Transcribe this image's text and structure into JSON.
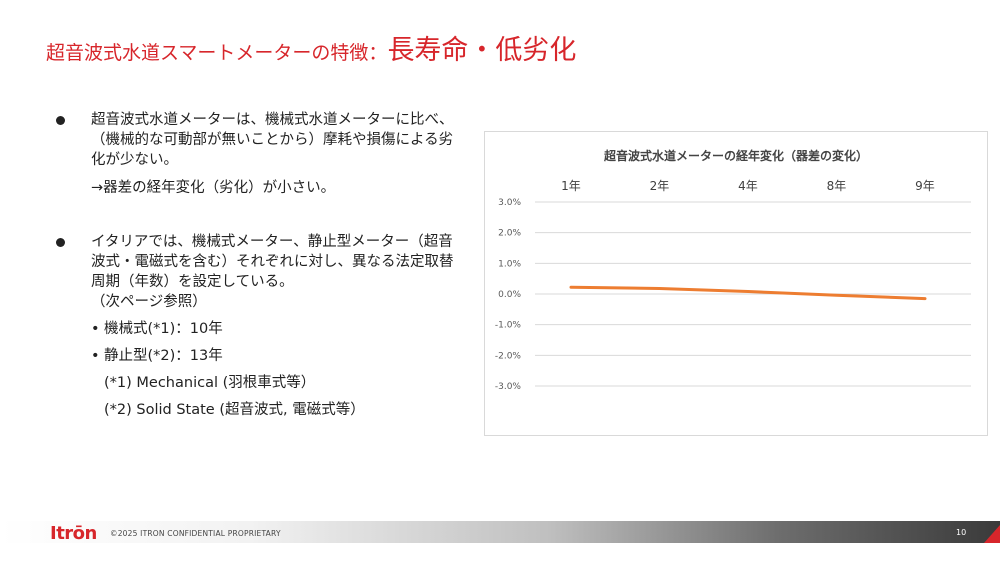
{
  "title": {
    "main": "超音波式水道スマートメーターの特徴：",
    "emphasis": "長寿命・低劣化"
  },
  "bullets": {
    "b1": "超音波式水道メーターは、機械式水道メーターに比べ、（機械的な可動部が無いことから）摩耗や損傷による劣化が少ない。",
    "b1_sub": "→器差の経年変化（劣化）が小さい。",
    "b2": "イタリアでは、機械式メーター、静止型メーター（超音波式・電磁式を含む）それぞれに対し、異なる法定取替周期（年数）を設定している。",
    "b2_ref": "（次ページ参照）",
    "items": [
      "機械式(*1)：10年",
      "静止型(*2)：13年"
    ],
    "item_marker": "•",
    "notes": [
      "(*1) Mechanical (羽根車式等）",
      "(*2) Solid State (超音波式, 電磁式等）"
    ]
  },
  "chart_data": {
    "type": "line",
    "title": "超音波式水道メーターの経年変化（器差の変化）",
    "categories": [
      "1年",
      "2年",
      "4年",
      "8年",
      "9年"
    ],
    "y_ticks": [
      "3.0%",
      "2.0%",
      "1.0%",
      "0.0%",
      "-1.0%",
      "-2.0%",
      "-3.0%"
    ],
    "ylim": [
      -3.0,
      3.0
    ],
    "series": [
      {
        "values": [
          0.22,
          0.18,
          0.08,
          -0.04,
          -0.15
        ],
        "color": "#ed7d31"
      }
    ],
    "grid": true
  },
  "footer": {
    "logo": "Itrōn",
    "copyright": "©2025  ITRON CONFIDENTIAL PROPRIETARY",
    "page": "10"
  },
  "colors": {
    "accent": "#d7262b",
    "line": "#ed7d31",
    "grid": "#d9d9d9"
  }
}
